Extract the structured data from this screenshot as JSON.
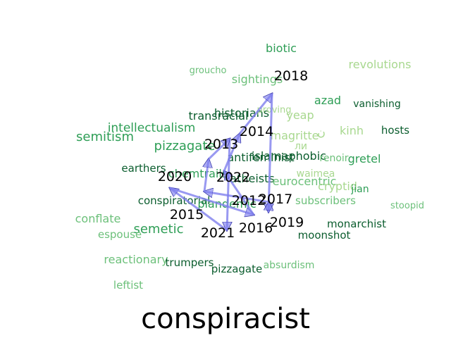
{
  "title": "conspiracist",
  "colors": {
    "dark_green": "#0b5d2e",
    "mid_green": "#2e9e56",
    "light_green": "#6cc07a",
    "pale_green": "#a8d88f",
    "year_text": "#000000",
    "arrow_fill": "#8080ee",
    "arrow_stroke": "#3a3aaa"
  },
  "words": [
    {
      "text": "biotic",
      "tone": "mid"
    },
    {
      "text": "revolutions",
      "tone": "pale"
    },
    {
      "text": "groucho",
      "tone": "light"
    },
    {
      "text": "sightings",
      "tone": "light"
    },
    {
      "text": "azad",
      "tone": "mid"
    },
    {
      "text": "vanishing",
      "tone": "dark"
    },
    {
      "text": "historians",
      "tone": "dark"
    },
    {
      "text": "proving",
      "tone": "pale"
    },
    {
      "text": "yeap",
      "tone": "pale"
    },
    {
      "text": "transracial",
      "tone": "dark"
    },
    {
      "text": "intellectualism",
      "tone": "mid"
    },
    {
      "text": "semitism",
      "tone": "mid"
    },
    {
      "text": "magritte",
      "tone": "pale"
    },
    {
      "text": "ن",
      "tone": "pale"
    },
    {
      "text": "kinh",
      "tone": "pale"
    },
    {
      "text": "hosts",
      "tone": "dark"
    },
    {
      "text": "ли",
      "tone": "pale"
    },
    {
      "text": "pizzagate",
      "tone": "mid"
    },
    {
      "text": "antifeminist",
      "tone": "dark"
    },
    {
      "text": "islamaphobic",
      "tone": "dark"
    },
    {
      "text": "renoir",
      "tone": "light"
    },
    {
      "text": "gretel",
      "tone": "mid"
    },
    {
      "text": "earthers",
      "tone": "dark"
    },
    {
      "text": "chemtrails",
      "tone": "mid"
    },
    {
      "text": "atheists",
      "tone": "dark"
    },
    {
      "text": "waimea",
      "tone": "pale"
    },
    {
      "text": "eurocentric",
      "tone": "light"
    },
    {
      "text": "cryptid",
      "tone": "pale"
    },
    {
      "text": "jian",
      "tone": "mid"
    },
    {
      "text": "conspiratorial",
      "tone": "dark"
    },
    {
      "text": "plandemic",
      "tone": "mid"
    },
    {
      "text": "subscribers",
      "tone": "light"
    },
    {
      "text": "stoopid",
      "tone": "light"
    },
    {
      "text": "conflate",
      "tone": "light"
    },
    {
      "text": "semetic",
      "tone": "mid"
    },
    {
      "text": "monarchist",
      "tone": "dark"
    },
    {
      "text": "espouse",
      "tone": "light"
    },
    {
      "text": "moonshot",
      "tone": "dark"
    },
    {
      "text": "reactionary",
      "tone": "light"
    },
    {
      "text": "trumpers",
      "tone": "dark"
    },
    {
      "text": "pizzagate",
      "tone": "dark"
    },
    {
      "text": "absurdism",
      "tone": "light"
    },
    {
      "text": "leftist",
      "tone": "light"
    }
  ],
  "years": [
    "2018",
    "2014",
    "2013",
    "2022",
    "2020",
    "2012",
    "2017",
    "2015",
    "2016",
    "2019",
    "2021"
  ],
  "path": [
    "2013",
    "2021",
    "2020",
    "2016",
    "2022",
    "2014",
    "2018",
    "2017",
    "2019",
    "2015",
    "2012",
    "2013"
  ]
}
